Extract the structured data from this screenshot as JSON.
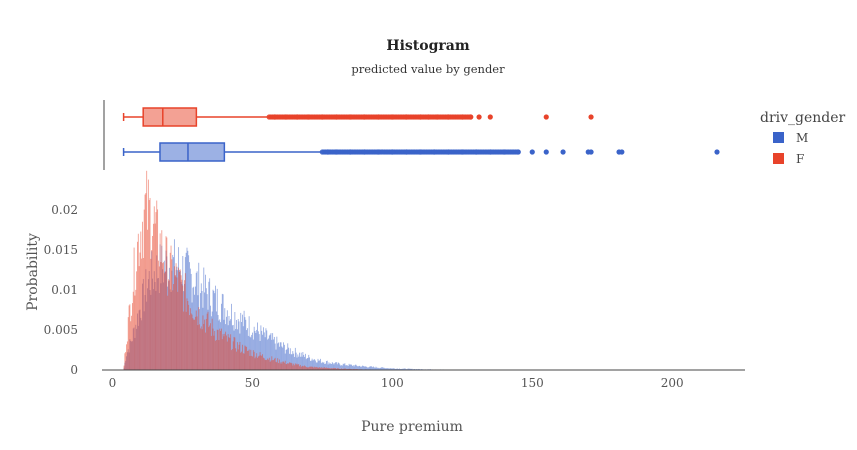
{
  "chart_data": {
    "type": "histogram",
    "title": "Histogram",
    "subtitle": "predicted value by gender",
    "xlabel": "Pure premium",
    "ylabel": "Probability",
    "xlim": [
      -3,
      226
    ],
    "ylim": [
      0,
      0.0235
    ],
    "x_ticks": [
      0,
      50,
      100,
      150,
      200
    ],
    "y_ticks": [
      0,
      0.005,
      0.01,
      0.015,
      0.02
    ],
    "y_tick_labels": [
      "0",
      "0.005",
      "0.01",
      "0.015",
      "0.02"
    ],
    "grid": false,
    "legend": {
      "title": "driv_gender",
      "placement": "right"
    },
    "series": [
      {
        "name": "M",
        "color": "#3a63c9",
        "opacity": 0.55,
        "histogram_profile": {
          "start": 4,
          "end": 140,
          "peak_x": 20,
          "peak_value": 0.0135,
          "points": [
            [
              4,
              0
            ],
            [
              5,
              0.002
            ],
            [
              7,
              0.004
            ],
            [
              10,
              0.008
            ],
            [
              13,
              0.0115
            ],
            [
              16,
              0.0128
            ],
            [
              20,
              0.0135
            ],
            [
              24,
              0.0132
            ],
            [
              28,
              0.012
            ],
            [
              32,
              0.0105
            ],
            [
              36,
              0.0092
            ],
            [
              40,
              0.008
            ],
            [
              45,
              0.0066
            ],
            [
              50,
              0.0054
            ],
            [
              55,
              0.0042
            ],
            [
              60,
              0.0031
            ],
            [
              65,
              0.0023
            ],
            [
              70,
              0.0016
            ],
            [
              75,
              0.0011
            ],
            [
              80,
              0.0008
            ],
            [
              90,
              0.00045
            ],
            [
              100,
              0.0002
            ],
            [
              110,
              0.0001
            ],
            [
              120,
              5e-05
            ],
            [
              140,
              0
            ]
          ]
        },
        "boxplot": {
          "whisker_low": 4,
          "q1": 17,
          "median": 27,
          "q3": 40,
          "whisker_high": 75,
          "outliers": [
            77,
            80,
            85,
            90,
            95,
            100,
            105,
            110,
            115,
            120,
            125,
            130,
            135,
            140,
            145,
            150,
            155,
            161,
            170,
            171,
            181,
            182,
            216
          ]
        }
      },
      {
        "name": "F",
        "color": "#e8432a",
        "opacity": 0.55,
        "histogram_profile": {
          "start": 4,
          "end": 100,
          "peak_x": 12,
          "peak_value": 0.0205,
          "points": [
            [
              4,
              0
            ],
            [
              5,
              0.004
            ],
            [
              7,
              0.01
            ],
            [
              9,
              0.016
            ],
            [
              11,
              0.0195
            ],
            [
              12,
              0.0205
            ],
            [
              14,
              0.0195
            ],
            [
              16,
              0.017
            ],
            [
              18,
              0.015
            ],
            [
              20,
              0.013
            ],
            [
              24,
              0.011
            ],
            [
              28,
              0.0085
            ],
            [
              32,
              0.0068
            ],
            [
              36,
              0.0052
            ],
            [
              40,
              0.0041
            ],
            [
              45,
              0.003
            ],
            [
              50,
              0.0022
            ],
            [
              55,
              0.0016
            ],
            [
              60,
              0.0011
            ],
            [
              65,
              0.0007
            ],
            [
              70,
              0.0004
            ],
            [
              80,
              0.0002
            ],
            [
              90,
              8e-05
            ],
            [
              100,
              0
            ]
          ]
        },
        "boxplot": {
          "whisker_low": 4,
          "q1": 11,
          "median": 18,
          "q3": 30,
          "whisker_high": 56,
          "outliers": [
            58,
            62,
            66,
            70,
            75,
            80,
            85,
            90,
            95,
            100,
            105,
            110,
            113,
            116,
            120,
            125,
            128,
            131,
            135,
            155,
            171
          ]
        }
      }
    ]
  }
}
